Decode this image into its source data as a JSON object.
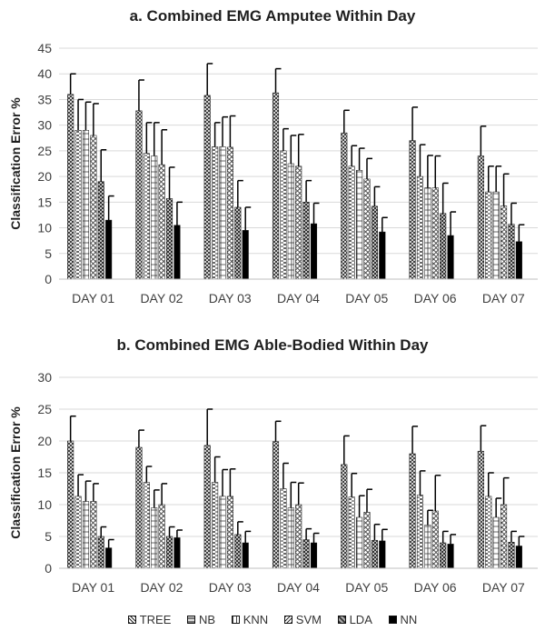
{
  "chart_data": [
    {
      "type": "bar",
      "title": "a. Combined EMG Amputee Within Day",
      "ylabel": "Classification Error %",
      "ylim": [
        0,
        45
      ],
      "yticks": [
        0,
        5,
        10,
        15,
        20,
        25,
        30,
        35,
        40,
        45
      ],
      "grid": true,
      "categories": [
        "DAY 01",
        "DAY 02",
        "DAY 03",
        "DAY 04",
        "DAY 05",
        "DAY 06",
        "DAY 07"
      ],
      "series": [
        {
          "name": "TREE",
          "values": [
            36,
            32.8,
            35.8,
            36.3,
            28.5,
            27,
            24
          ],
          "errors": [
            4,
            6,
            6.2,
            4.7,
            4.4,
            6.5,
            5.8
          ]
        },
        {
          "name": "NB",
          "values": [
            29,
            24.5,
            25.8,
            25,
            22,
            20,
            17
          ],
          "errors": [
            6,
            6,
            4.7,
            4.3,
            4,
            6.2,
            5
          ]
        },
        {
          "name": "KNN",
          "values": [
            29,
            24,
            25.8,
            22.5,
            21.2,
            17.8,
            17
          ],
          "errors": [
            5.5,
            6.5,
            5.8,
            5.5,
            4.3,
            6.3,
            5
          ]
        },
        {
          "name": "SVM",
          "values": [
            28,
            22.3,
            25.7,
            22,
            19.5,
            17.8,
            14.3
          ],
          "errors": [
            6.2,
            6.8,
            6.1,
            6.2,
            4,
            6.2,
            6.2
          ]
        },
        {
          "name": "LDA",
          "values": [
            19,
            15.7,
            14,
            15,
            14.2,
            12.8,
            10.7
          ],
          "errors": [
            6.2,
            6.1,
            5.2,
            4.2,
            3.8,
            5.9,
            4.1
          ]
        },
        {
          "name": "NN",
          "values": [
            11.5,
            10.5,
            9.5,
            10.8,
            9.2,
            8.5,
            7.3
          ],
          "errors": [
            4.7,
            4.5,
            4.5,
            4,
            2.8,
            4.6,
            3.3
          ]
        }
      ]
    },
    {
      "type": "bar",
      "title": "b. Combined EMG Able-Bodied Within Day",
      "ylabel": "Classification Error %",
      "ylim": [
        0,
        30
      ],
      "yticks": [
        0,
        5,
        10,
        15,
        20,
        25,
        30
      ],
      "grid": true,
      "categories": [
        "DAY 01",
        "DAY 02",
        "DAY 03",
        "DAY 04",
        "DAY 05",
        "DAY 06",
        "DAY 07"
      ],
      "series": [
        {
          "name": "TREE",
          "values": [
            20,
            19,
            19.3,
            19.9,
            16.3,
            18,
            18.4
          ],
          "errors": [
            3.9,
            2.7,
            5.7,
            3.2,
            4.5,
            4.3,
            4
          ]
        },
        {
          "name": "NB",
          "values": [
            11.3,
            13.5,
            13.5,
            12.5,
            11.2,
            11.5,
            11.3
          ],
          "errors": [
            3.4,
            2.5,
            4,
            4,
            3.7,
            3.8,
            3.7
          ]
        },
        {
          "name": "KNN",
          "values": [
            10.5,
            9.5,
            11.3,
            9.5,
            8,
            6.8,
            8
          ],
          "errors": [
            3.2,
            2.8,
            4.2,
            4,
            3.4,
            2.3,
            3
          ]
        },
        {
          "name": "SVM",
          "values": [
            10.5,
            10,
            11.3,
            10,
            8.8,
            9,
            10
          ],
          "errors": [
            2.8,
            3.3,
            4.3,
            3.4,
            3.6,
            5.6,
            4.2
          ]
        },
        {
          "name": "LDA",
          "values": [
            5,
            5,
            5.3,
            4.5,
            4.4,
            4,
            4.1
          ],
          "errors": [
            1.5,
            1.5,
            2,
            1.7,
            2.5,
            1.8,
            1.7
          ]
        },
        {
          "name": "NN",
          "values": [
            3.2,
            4.8,
            4,
            4,
            4.3,
            3.8,
            3.5
          ],
          "errors": [
            1.3,
            1.2,
            1.8,
            1.5,
            1.8,
            1.5,
            1.5
          ]
        }
      ]
    }
  ],
  "legend": {
    "placement": "bottom",
    "items": [
      {
        "label": "TREE",
        "pattern": "crosshatch"
      },
      {
        "label": "NB",
        "pattern": "dashes"
      },
      {
        "label": "KNN",
        "pattern": "plus"
      },
      {
        "label": "SVM",
        "pattern": "diamond"
      },
      {
        "label": "LDA",
        "pattern": "checker"
      },
      {
        "label": "NN",
        "pattern": "solid"
      }
    ]
  }
}
